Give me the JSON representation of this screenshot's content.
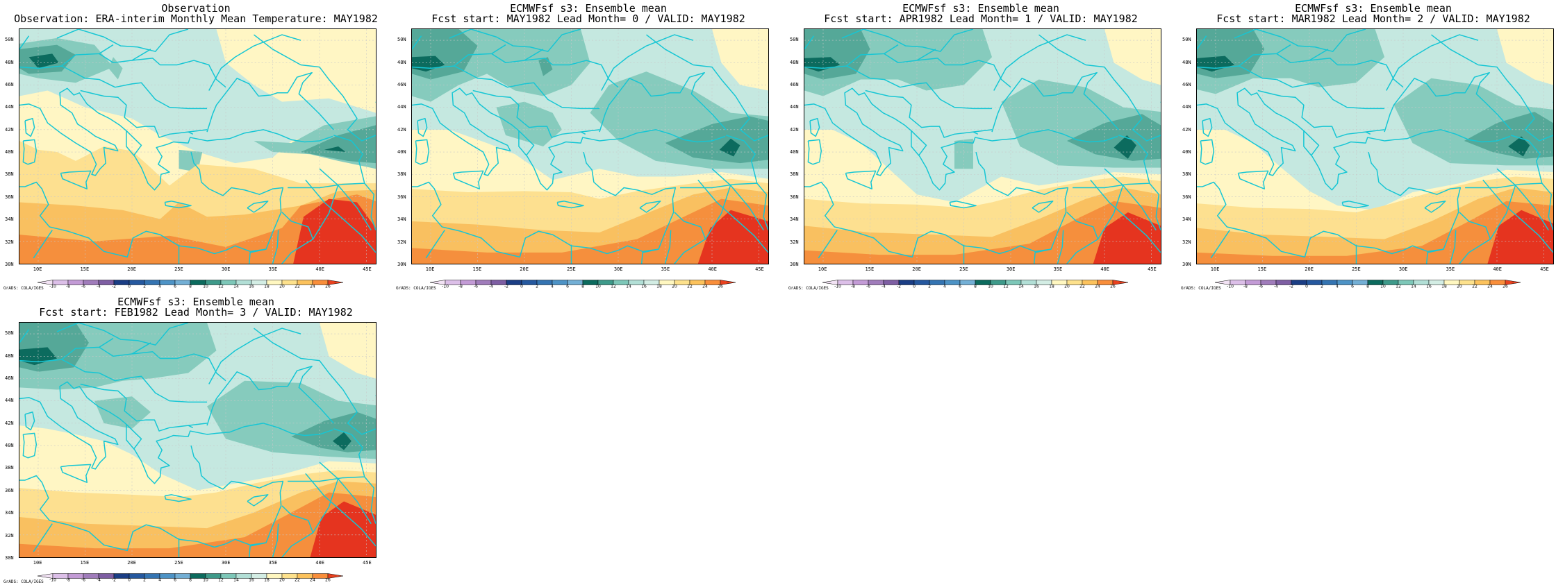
{
  "panels": [
    {
      "title1": "Observation",
      "title2": "Observation: ERA-interim Monthly Mean Temperature: MAY1982",
      "variant": 0
    },
    {
      "title1": "ECMWFsf s3: Ensemble mean",
      "title2": "Fcst start: MAY1982  Lead Month= 0 / VALID: MAY1982",
      "variant": 1
    },
    {
      "title1": "ECMWFsf s3: Ensemble mean",
      "title2": "Fcst start: APR1982  Lead Month= 1 / VALID: MAY1982",
      "variant": 2
    },
    {
      "title1": "ECMWFsf s3: Ensemble mean",
      "title2": "Fcst start: MAR1982  Lead Month= 2 / VALID: MAY1982",
      "variant": 3
    },
    {
      "title1": "ECMWFsf s3: Ensemble mean",
      "title2": "Fcst start: FEB1982  Lead Month= 3 / VALID: MAY1982",
      "variant": 4
    }
  ],
  "lat_labels": [
    "50N",
    "48N",
    "46N",
    "44N",
    "42N",
    "40N",
    "38N",
    "36N",
    "34N",
    "32N",
    "30N"
  ],
  "lon_labels": [
    "10E",
    "15E",
    "20E",
    "25E",
    "30E",
    "35E",
    "40E",
    "45E"
  ],
  "colorbar": {
    "ticks": [
      "-10",
      "-8",
      "-6",
      "-4",
      "-2",
      "0",
      "2",
      "4",
      "6",
      "8",
      "10",
      "12",
      "14",
      "16",
      "18",
      "20",
      "22",
      "24",
      "26"
    ],
    "colors": [
      "#f2e2f4",
      "#dcbfe8",
      "#c39bd6",
      "#a07cbb",
      "#7e5ea3",
      "#1b3e85",
      "#25589f",
      "#3474b2",
      "#4d93c6",
      "#73afd5",
      "#0c6b5e",
      "#3e9a8a",
      "#7dc7b8",
      "#b2dfd6",
      "#d3ede4",
      "#fff7c0",
      "#fde18c",
      "#fcc25c",
      "#f98e3a",
      "#e8411f"
    ],
    "credit": "GrADS: COLA/IGES"
  },
  "field_colors": {
    "c10": "#0c6b5e",
    "c8": "#2e8a7c",
    "c12": "#55a898",
    "c14": "#86cbbd",
    "c16": "#c5e8e0",
    "c18": "#fff6c4",
    "c20": "#fde090",
    "c22": "#f9c060",
    "c24": "#f58f3d",
    "c26": "#e5341f",
    "coast": "#16c6d4",
    "grid": "#c8c8c8"
  }
}
